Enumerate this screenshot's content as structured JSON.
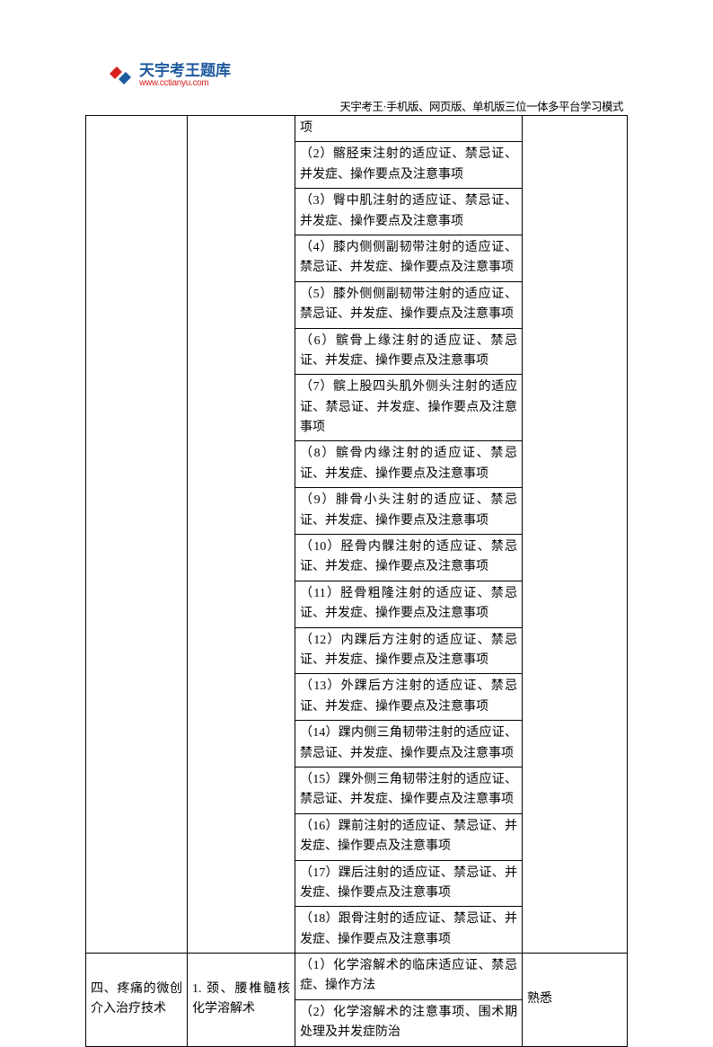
{
  "logo": {
    "main_text": "天宇考王题库",
    "url_text": "www.cctianyu.com",
    "icon_color1": "#d82020",
    "icon_color2": "#1e5a9e"
  },
  "header": "天宇考王·手机版、网页版、单机版三位一体多平台学习模式",
  "table": {
    "section1": {
      "col1": "",
      "col2": "",
      "col4": "",
      "items": [
        "项",
        "（2）髂胫束注射的适应证、禁忌证、并发症、操作要点及注意事项",
        "（3）臀中肌注射的适应证、禁忌证、并发症、操作要点及注意事项",
        "（4）膝内侧侧副韧带注射的适应证、禁忌证、并发症、操作要点及注意事项",
        "（5）膝外侧侧副韧带注射的适应证、禁忌证、并发症、操作要点及注意事项",
        "（6）髌骨上缘注射的适应证、禁忌证、并发症、操作要点及注意事项",
        "（7）髌上股四头肌外侧头注射的适应证、禁忌证、并发症、操作要点及注意事项",
        "（8）髌骨内缘注射的适应证、禁忌证、并发症、操作要点及注意事项",
        "（9）腓骨小头注射的适应证、禁忌证、并发症、操作要点及注意事项",
        "（10）胫骨内髁注射的适应证、禁忌证、并发症、操作要点及注意事项",
        "（11）胫骨粗隆注射的适应证、禁忌证、并发症、操作要点及注意事项",
        "（12）内踝后方注射的适应证、禁忌证、并发症、操作要点及注意事项",
        "（13）外踝后方注射的适应证、禁忌证、并发症、操作要点及注意事项",
        "（14）踝内侧三角韧带注射的适应证、禁忌证、并发症、操作要点及注意事项",
        "（15）踝外侧三角韧带注射的适应证、禁忌证、并发症、操作要点及注意事项",
        "（16）踝前注射的适应证、禁忌证、并发症、操作要点及注意事项",
        "（17）踝后注射的适应证、禁忌证、并发症、操作要点及注意事项",
        "（18）跟骨注射的适应证、禁忌证、并发症、操作要点及注意事项"
      ]
    },
    "section2": {
      "col1": "四、疼痛的微创介入治疗技术",
      "col2": "1. 颈、腰椎髓核化学溶解术",
      "col4": "熟悉",
      "items": [
        "（1）化学溶解术的临床适应证、禁忌症、操作方法",
        "（2）化学溶解术的注意事项、围术期处理及并发症防治"
      ]
    }
  },
  "styling": {
    "background_color": "#ffffff",
    "text_color": "#000000",
    "border_color": "#000000",
    "font_size": 14,
    "header_font_size": 12.5,
    "logo_main_color": "#1e5a9e",
    "logo_url_color": "#d82020"
  }
}
